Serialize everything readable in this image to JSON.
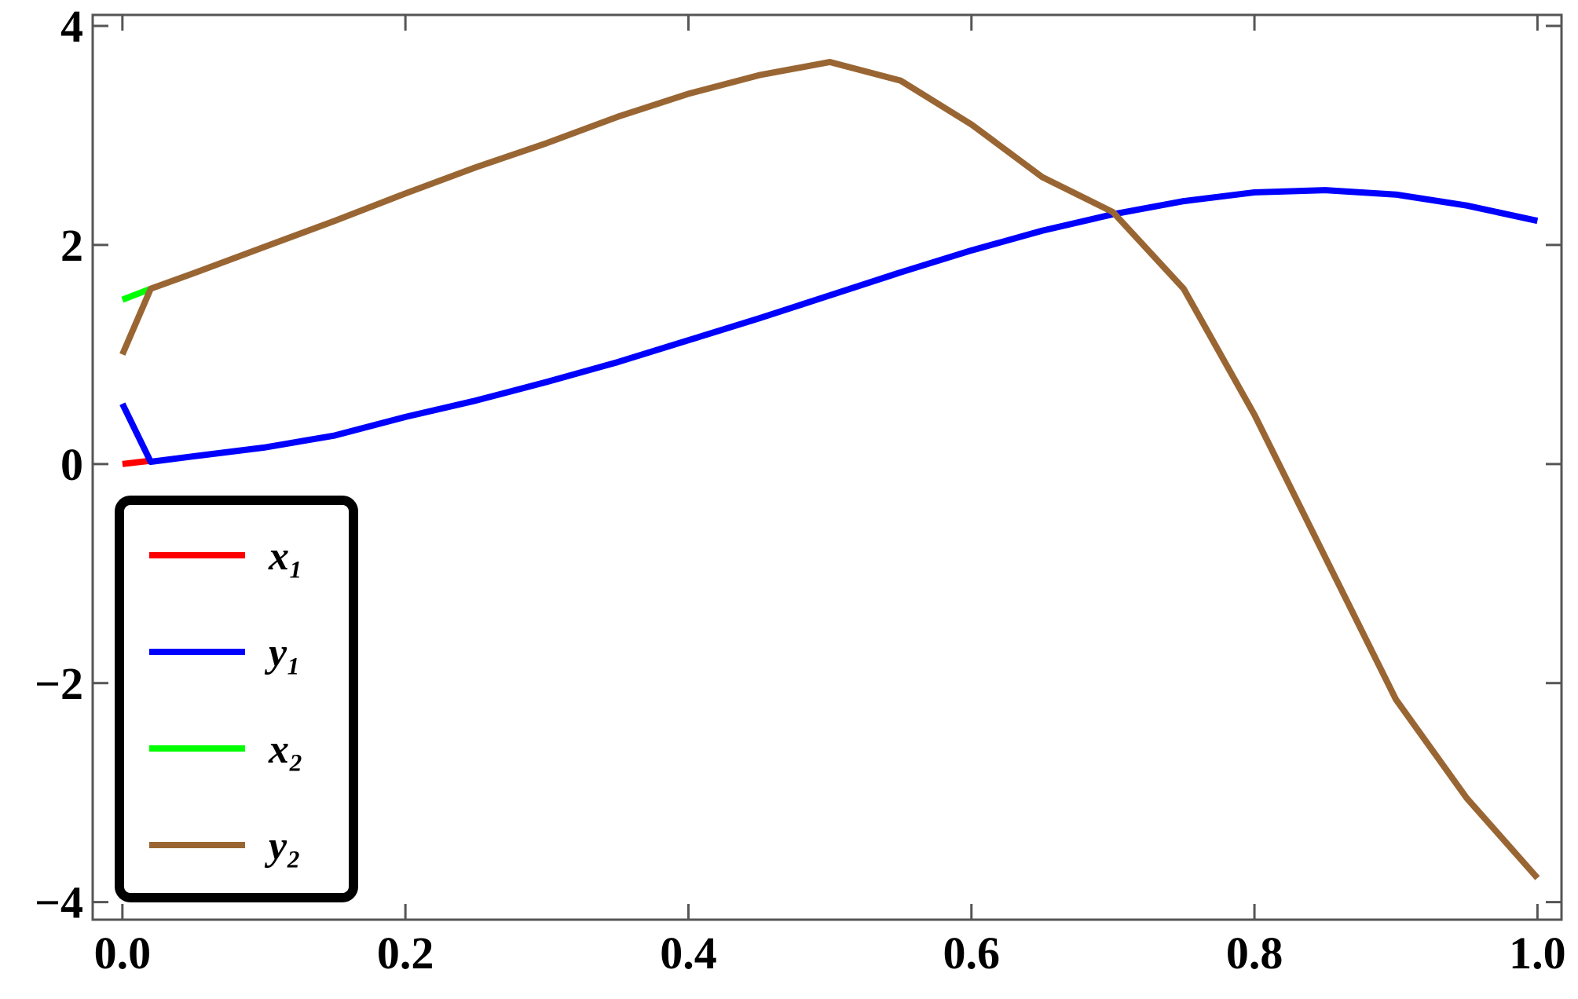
{
  "chart_data": {
    "type": "line",
    "x": [
      0,
      0.02,
      0.05,
      0.1,
      0.15,
      0.2,
      0.25,
      0.3,
      0.35,
      0.4,
      0.45,
      0.5,
      0.55,
      0.6,
      0.65,
      0.7,
      0.75,
      0.8,
      0.85,
      0.9,
      0.95,
      1.0
    ],
    "series": [
      {
        "name": "x₁",
        "color": "#ff0000",
        "values": [
          0,
          0.03,
          null,
          null,
          null,
          null,
          null,
          null,
          null,
          null,
          null,
          null,
          null,
          null,
          null,
          null,
          null,
          null,
          null,
          null,
          null,
          null
        ]
      },
      {
        "name": "y₁",
        "color": "#0000ff",
        "values": [
          0.55,
          0.02,
          0.07,
          0.15,
          0.26,
          0.43,
          0.58,
          0.75,
          0.93,
          1.13,
          1.33,
          1.54,
          1.75,
          1.95,
          2.13,
          2.28,
          2.4,
          2.48,
          2.5,
          2.46,
          2.36,
          2.22
        ]
      },
      {
        "name": "x₂",
        "color": "#00ff00",
        "values": [
          1.5,
          1.6,
          null,
          null,
          null,
          null,
          null,
          null,
          null,
          null,
          null,
          null,
          null,
          null,
          null,
          null,
          null,
          null,
          null,
          null,
          null,
          null
        ]
      },
      {
        "name": "y₂",
        "color": "#996633",
        "values": [
          1.0,
          1.6,
          1.74,
          1.98,
          2.22,
          2.47,
          2.71,
          2.93,
          3.17,
          3.38,
          3.55,
          3.67,
          3.5,
          3.1,
          2.62,
          2.3,
          1.6,
          0.45,
          -0.85,
          -2.15,
          -3.05,
          -3.78
        ]
      }
    ],
    "xlim": [
      -0.021,
      1.017
    ],
    "ylim": [
      -4.16,
      4.1
    ],
    "xticks": [
      {
        "value": 0,
        "label": "0.0"
      },
      {
        "value": 0.2,
        "label": "0.2"
      },
      {
        "value": 0.4,
        "label": "0.4"
      },
      {
        "value": 0.6,
        "label": "0.6"
      },
      {
        "value": 0.8,
        "label": "0.8"
      },
      {
        "value": 1.0,
        "label": "1.0"
      }
    ],
    "yticks": [
      {
        "value": -4,
        "label": "−4"
      },
      {
        "value": -2,
        "label": "−2"
      },
      0,
      2,
      4
    ],
    "legend": "lower left"
  }
}
